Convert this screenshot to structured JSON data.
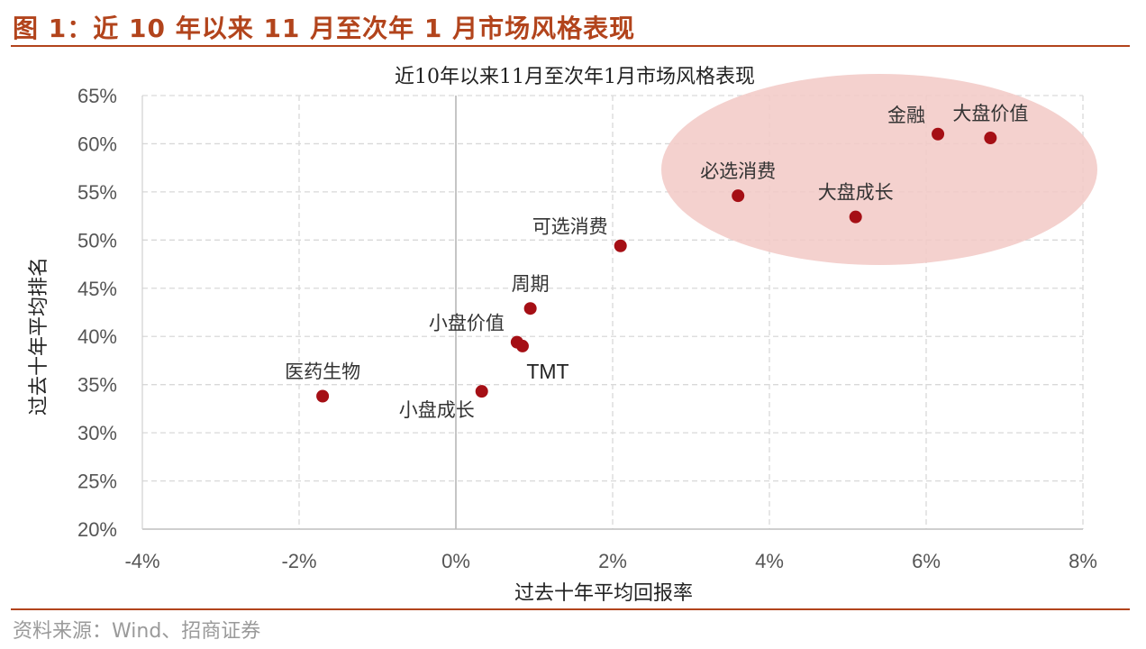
{
  "header": {
    "figure_title": "图 1：近 10 年以来 11 月至次年 1 月市场风格表现"
  },
  "footer": {
    "source": "资料来源：Wind、招商证券"
  },
  "colors": {
    "accent": "#b2441c",
    "marker": "#a50f15",
    "highlight": "#f2c9c6",
    "grid": "#d9d9d9"
  },
  "chart_data": {
    "type": "scatter",
    "title": "近10年以来11月至次年1月市场风格表现",
    "xlabel": "过去十年平均回报率",
    "ylabel": "过去十年平均排名",
    "xlim": [
      -4,
      8
    ],
    "ylim": [
      20,
      65
    ],
    "x_ticks": [
      -4,
      -2,
      0,
      2,
      4,
      6,
      8
    ],
    "y_ticks": [
      20,
      25,
      30,
      35,
      40,
      45,
      50,
      55,
      60,
      65
    ],
    "x_tick_labels": [
      "-4%",
      "-2%",
      "0%",
      "2%",
      "4%",
      "6%",
      "8%"
    ],
    "y_tick_labels": [
      "20%",
      "25%",
      "30%",
      "35%",
      "40%",
      "45%",
      "50%",
      "55%",
      "60%",
      "65%"
    ],
    "grid": true,
    "points": [
      {
        "name": "金融",
        "x": 6.15,
        "y": 61.0,
        "label_pos": "upper-left"
      },
      {
        "name": "大盘价值",
        "x": 6.82,
        "y": 60.6,
        "label_pos": "above"
      },
      {
        "name": "必选消费",
        "x": 3.6,
        "y": 54.6,
        "label_pos": "above"
      },
      {
        "name": "大盘成长",
        "x": 5.1,
        "y": 52.4,
        "label_pos": "above"
      },
      {
        "name": "可选消费",
        "x": 2.1,
        "y": 49.4,
        "label_pos": "upper-left"
      },
      {
        "name": "周期",
        "x": 0.95,
        "y": 42.9,
        "label_pos": "above"
      },
      {
        "name": "小盘价值",
        "x": 0.78,
        "y": 39.4,
        "label_pos": "upper-left"
      },
      {
        "name": "TMT",
        "x": 0.85,
        "y": 39.0,
        "label_pos": "below"
      },
      {
        "name": "医药生物",
        "x": -1.7,
        "y": 33.8,
        "label_pos": "above"
      },
      {
        "name": "小盘成长",
        "x": 0.33,
        "y": 34.3,
        "label_pos": "lower-left"
      }
    ],
    "highlight_group": [
      "金融",
      "大盘价值",
      "必选消费",
      "大盘成长"
    ]
  }
}
